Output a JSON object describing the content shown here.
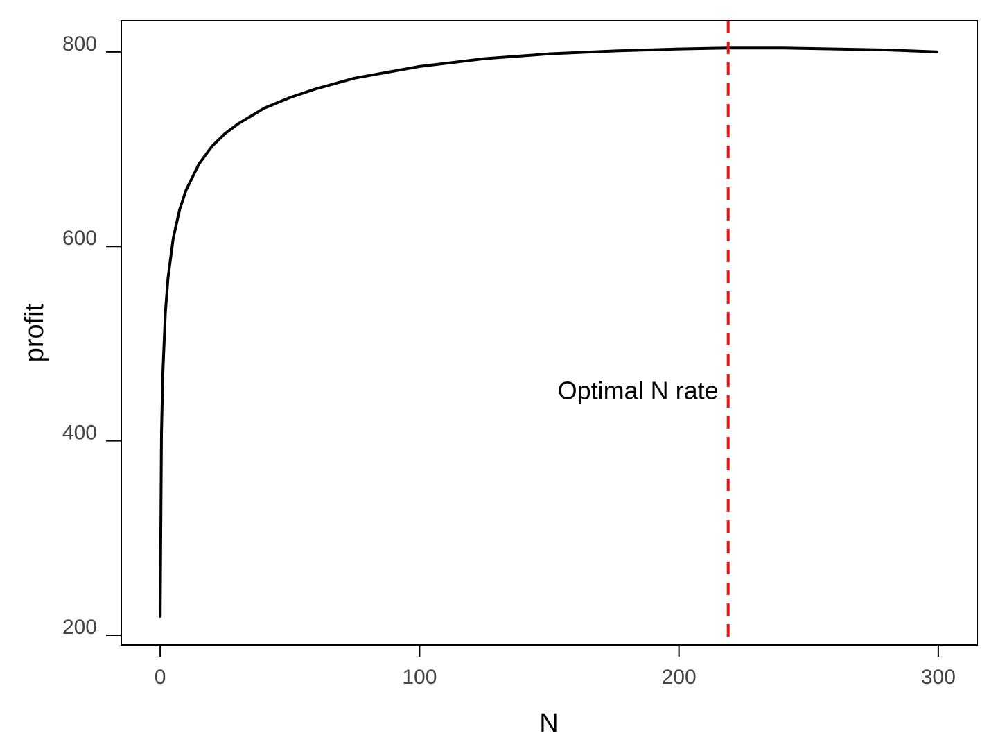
{
  "chart_data": {
    "type": "line",
    "title": "",
    "xlabel": "N",
    "ylabel": "profit",
    "xlim": [
      -15,
      315
    ],
    "ylim": [
      190,
      832
    ],
    "x_ticks": [
      0,
      100,
      200,
      300
    ],
    "y_ticks": [
      200,
      400,
      600,
      800
    ],
    "grid": false,
    "legend": "none",
    "series": [
      {
        "color": "#000000",
        "x": [
          0,
          0.5,
          1,
          2,
          3,
          5,
          7.5,
          10,
          15,
          20,
          25,
          30,
          40,
          50,
          60,
          75,
          100,
          125,
          150,
          175,
          200,
          219,
          240,
          260,
          280,
          300
        ],
        "y": [
          218,
          408,
          468,
          532,
          567,
          608,
          638,
          658,
          685,
          703,
          716,
          726,
          742,
          753,
          762,
          773,
          785,
          793,
          798,
          801,
          803,
          804,
          804,
          803,
          802,
          800
        ]
      }
    ],
    "vline": {
      "x": 219,
      "color": "#ee1111",
      "style": "dashed"
    },
    "annotations": [
      {
        "text": "Optimal N rate",
        "x": 219,
        "y": 443
      }
    ]
  }
}
